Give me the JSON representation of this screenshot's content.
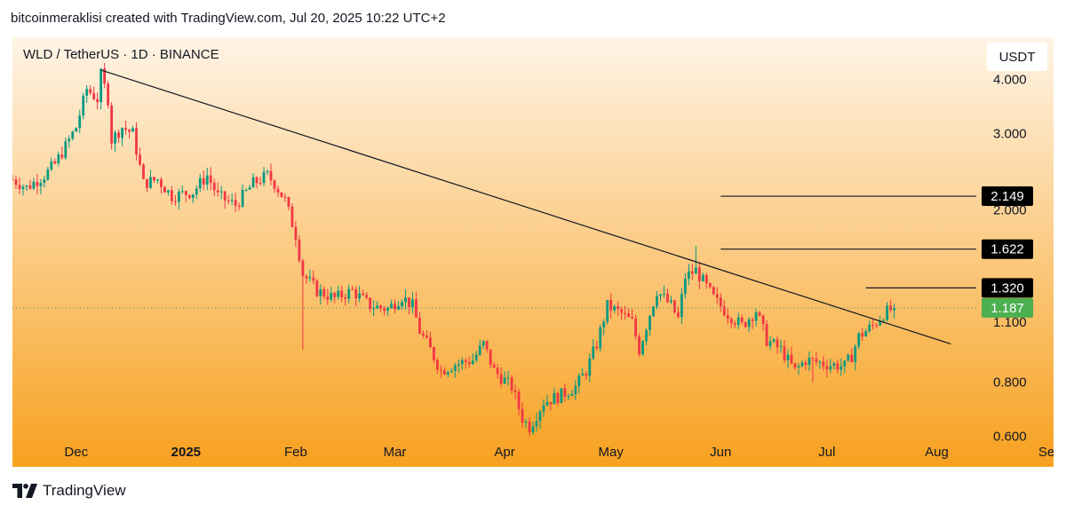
{
  "header": {
    "text": "bitcoinmeraklisi created with TradingView.com, Jul 20, 2025 10:22 UTC+2"
  },
  "footer": {
    "brand": "TradingView",
    "logo_icon": "tradingview-logo-icon"
  },
  "colors": {
    "bg_top": "#fff4e6",
    "bg_bottom": "#f7a11f",
    "candle_up": "#089981",
    "candle_down": "#f23645",
    "trendline": "#131722",
    "label_bg": "#000000",
    "last_label_bg": "#4caf50"
  },
  "chart_data": {
    "type": "candlestick",
    "symbol_line": "WLD / TetherUS · 1D · BINANCE",
    "currency_label": "USDT",
    "y_scale": "log",
    "ylim": [
      0.51,
      5.0
    ],
    "xlim": [
      "2024-11-13",
      "2025-09-03"
    ],
    "y_ticks": [
      "4.000",
      "3.000",
      "2.000",
      "1.100",
      "0.800",
      "0.600"
    ],
    "y_tick_values": [
      4.0,
      3.0,
      2.0,
      1.1,
      0.8,
      0.6
    ],
    "x_ticks": [
      {
        "label": "Dec",
        "date": "2024-12-01",
        "bold": false
      },
      {
        "label": "2025",
        "date": "2025-01-01",
        "bold": true
      },
      {
        "label": "Feb",
        "date": "2025-02-01",
        "bold": false
      },
      {
        "label": "Mar",
        "date": "2025-03-01",
        "bold": false
      },
      {
        "label": "Apr",
        "date": "2025-04-01",
        "bold": false
      },
      {
        "label": "May",
        "date": "2025-05-01",
        "bold": false
      },
      {
        "label": "Jun",
        "date": "2025-06-01",
        "bold": false
      },
      {
        "label": "Jul",
        "date": "2025-07-01",
        "bold": false
      },
      {
        "label": "Aug",
        "date": "2025-08-01",
        "bold": false
      },
      {
        "label": "Se",
        "date": "2025-09-01",
        "bold": false
      }
    ],
    "close_path": [
      [
        "2024-11-13",
        2.35
      ],
      [
        "2024-11-17",
        2.25
      ],
      [
        "2024-11-22",
        2.4
      ],
      [
        "2024-11-25",
        2.55
      ],
      [
        "2024-11-28",
        2.8
      ],
      [
        "2024-12-01",
        3.1
      ],
      [
        "2024-12-04",
        3.8
      ],
      [
        "2024-12-07",
        3.6
      ],
      [
        "2024-12-08",
        4.1
      ],
      [
        "2024-12-10",
        3.6
      ],
      [
        "2024-12-11",
        2.9
      ],
      [
        "2024-12-14",
        3.1
      ],
      [
        "2024-12-17",
        3.0
      ],
      [
        "2024-12-20",
        2.3
      ],
      [
        "2024-12-24",
        2.35
      ],
      [
        "2024-12-28",
        2.15
      ],
      [
        "2025-01-03",
        2.2
      ],
      [
        "2025-01-07",
        2.4
      ],
      [
        "2025-01-10",
        2.15
      ],
      [
        "2025-01-15",
        2.05
      ],
      [
        "2025-01-20",
        2.3
      ],
      [
        "2025-01-24",
        2.4
      ],
      [
        "2025-01-26",
        2.3
      ],
      [
        "2025-01-29",
        2.1
      ],
      [
        "2025-02-01",
        1.75
      ],
      [
        "2025-02-03",
        1.42
      ],
      [
        "2025-02-07",
        1.3
      ],
      [
        "2025-02-12",
        1.25
      ],
      [
        "2025-02-17",
        1.3
      ],
      [
        "2025-02-22",
        1.2
      ],
      [
        "2025-02-27",
        1.18
      ],
      [
        "2025-03-03",
        1.26
      ],
      [
        "2025-03-06",
        1.2
      ],
      [
        "2025-03-08",
        1.05
      ],
      [
        "2025-03-11",
        0.95
      ],
      [
        "2025-03-14",
        0.85
      ],
      [
        "2025-03-18",
        0.88
      ],
      [
        "2025-03-23",
        0.9
      ],
      [
        "2025-03-26",
        0.98
      ],
      [
        "2025-03-29",
        0.85
      ],
      [
        "2025-04-03",
        0.78
      ],
      [
        "2025-04-06",
        0.66
      ],
      [
        "2025-04-08",
        0.63
      ],
      [
        "2025-04-12",
        0.72
      ],
      [
        "2025-04-16",
        0.74
      ],
      [
        "2025-04-21",
        0.78
      ],
      [
        "2025-04-24",
        0.85
      ],
      [
        "2025-04-27",
        0.98
      ],
      [
        "2025-04-30",
        1.2
      ],
      [
        "2025-05-04",
        1.15
      ],
      [
        "2025-05-07",
        1.1
      ],
      [
        "2025-05-09",
        0.95
      ],
      [
        "2025-05-12",
        1.15
      ],
      [
        "2025-05-14",
        1.3
      ],
      [
        "2025-05-18",
        1.2
      ],
      [
        "2025-05-20",
        1.12
      ],
      [
        "2025-05-22",
        1.4
      ],
      [
        "2025-05-25",
        1.45
      ],
      [
        "2025-05-30",
        1.25
      ],
      [
        "2025-06-03",
        1.15
      ],
      [
        "2025-06-07",
        1.08
      ],
      [
        "2025-06-11",
        1.17
      ],
      [
        "2025-06-14",
        1.0
      ],
      [
        "2025-06-18",
        0.95
      ],
      [
        "2025-06-22",
        0.85
      ],
      [
        "2025-06-25",
        0.9
      ],
      [
        "2025-07-01",
        0.88
      ],
      [
        "2025-07-06",
        0.87
      ],
      [
        "2025-07-08",
        0.92
      ],
      [
        "2025-07-10",
        1.02
      ],
      [
        "2025-07-14",
        1.08
      ],
      [
        "2025-07-17",
        1.15
      ],
      [
        "2025-07-20",
        1.187
      ]
    ],
    "wick_spikes": [
      {
        "date": "2024-12-08",
        "high": 4.2
      },
      {
        "date": "2025-02-03",
        "low": 0.95
      },
      {
        "date": "2025-04-08",
        "low": 0.6
      },
      {
        "date": "2025-05-25",
        "high": 1.65
      },
      {
        "date": "2025-06-27",
        "low": 0.8
      }
    ],
    "trendline": {
      "start": [
        "2024-12-08",
        4.2
      ],
      "end": [
        "2025-08-05",
        0.98
      ]
    },
    "price_levels": [
      {
        "label": "2.149",
        "value": 2.149,
        "start_date": "2025-06-01",
        "label_bg": "#000000",
        "label_color": "#ffffff"
      },
      {
        "label": "1.622",
        "value": 1.622,
        "start_date": "2025-06-01",
        "label_bg": "#000000",
        "label_color": "#ffffff"
      },
      {
        "label": "1.320",
        "value": 1.32,
        "start_date": "2025-07-12",
        "label_bg": "#000000",
        "label_color": "#ffffff"
      }
    ],
    "last_price": {
      "label": "1.187",
      "value": 1.187,
      "label_bg": "#4caf50",
      "label_color": "#ffffff"
    }
  }
}
